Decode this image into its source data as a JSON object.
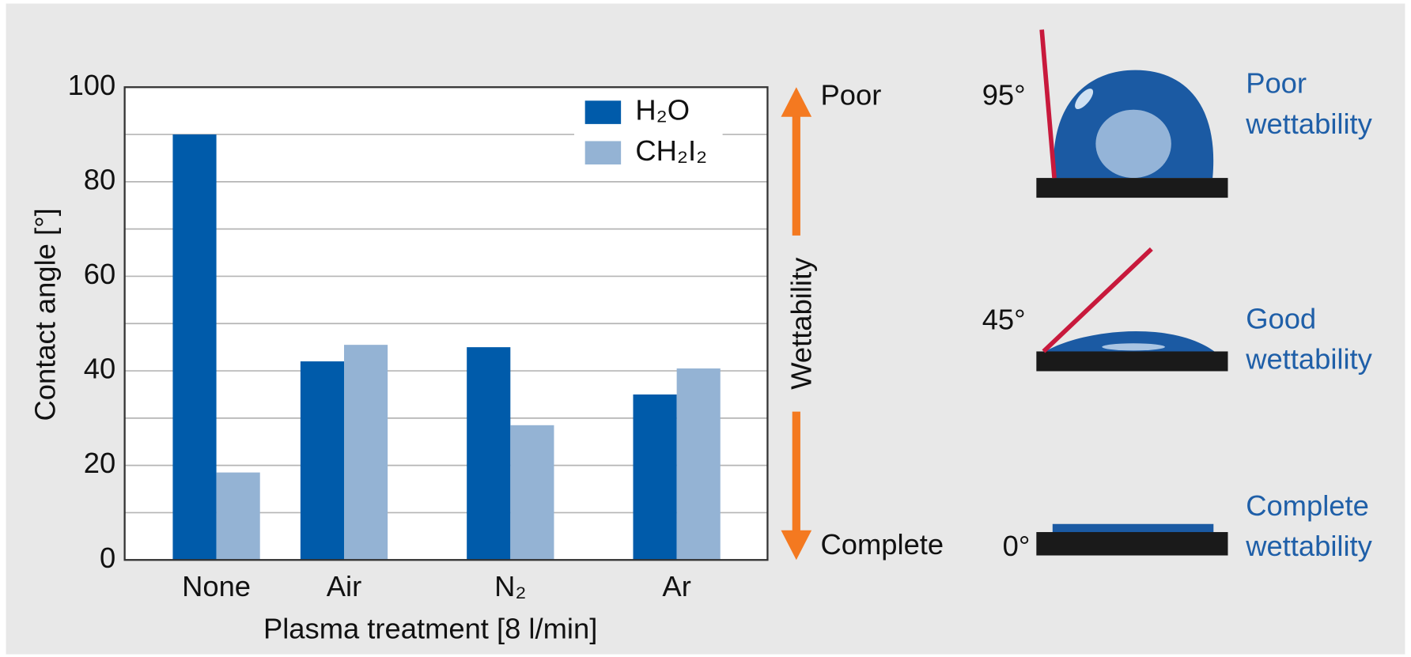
{
  "chart_data": {
    "type": "bar",
    "categories": [
      "None",
      "Air",
      "N₂",
      "Ar"
    ],
    "series": [
      {
        "name": "H₂O",
        "color": "#005baa",
        "values": [
          90,
          42,
          45,
          35
        ]
      },
      {
        "name": "CH₂I₂",
        "color": "#94b3d4",
        "values": [
          18.5,
          45.5,
          28.5,
          40.5
        ]
      }
    ],
    "ylim": [
      0,
      100
    ],
    "yticks": [
      0,
      20,
      40,
      60,
      80,
      100
    ],
    "minor_gridlines": [
      10,
      30,
      50,
      70,
      90
    ],
    "grid": true,
    "legend": "upper right",
    "ylabel": "Contact angle [°]",
    "xlabel": "Plasma treatment   [8 l/min]",
    "wettability_scale": {
      "label": "Wettability",
      "top": "Poor",
      "bottom": "Complete"
    },
    "examples": [
      {
        "angle": "95°",
        "caption": [
          "Poor",
          "wettability"
        ]
      },
      {
        "angle": "45°",
        "caption": [
          "Good",
          "wettability"
        ]
      },
      {
        "angle": "0°",
        "caption": [
          "Complete",
          "wettability"
        ]
      }
    ]
  }
}
